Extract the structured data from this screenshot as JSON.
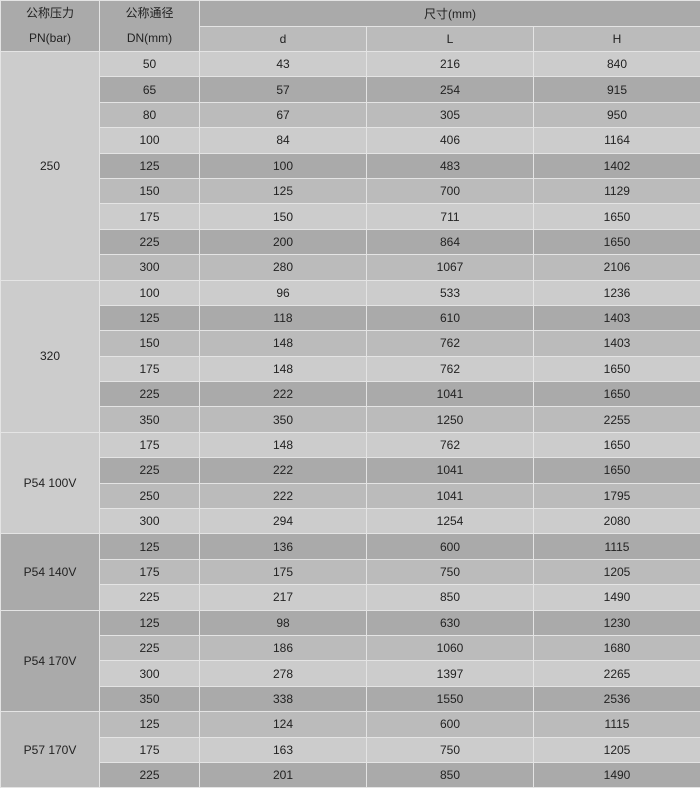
{
  "header": {
    "pressure_label_cn": "公称压力",
    "pressure_label": "PN(bar)",
    "diameter_label_cn": "公称通径",
    "diameter_label": "DN(mm)",
    "dimensions_label": "尺寸(mm)",
    "columns": [
      "d",
      "L",
      "H"
    ]
  },
  "colors": {
    "light": "#cccccc",
    "mid": "#bbbbbb",
    "dark": "#aaaaaa",
    "border": "#e4e4e4"
  },
  "groups": [
    {
      "pn": "250",
      "shade": "light",
      "rows": [
        [
          "50",
          "43",
          "216",
          "840"
        ],
        [
          "65",
          "57",
          "254",
          "915"
        ],
        [
          "80",
          "67",
          "305",
          "950"
        ],
        [
          "100",
          "84",
          "406",
          "1164"
        ],
        [
          "125",
          "100",
          "483",
          "1402"
        ],
        [
          "150",
          "125",
          "700",
          "1129"
        ],
        [
          "175",
          "150",
          "711",
          "1650"
        ],
        [
          "225",
          "200",
          "864",
          "1650"
        ],
        [
          "300",
          "280",
          "1067",
          "2106"
        ]
      ]
    },
    {
      "pn": "320",
      "shade": "light",
      "rows": [
        [
          "100",
          "96",
          "533",
          "1236"
        ],
        [
          "125",
          "118",
          "610",
          "1403"
        ],
        [
          "150",
          "148",
          "762",
          "1403"
        ],
        [
          "175",
          "148",
          "762",
          "1650"
        ],
        [
          "225",
          "222",
          "1041",
          "1650"
        ],
        [
          "350",
          "350",
          "1250",
          "2255"
        ]
      ]
    },
    {
      "pn": "P54 100V",
      "shade": "light",
      "rows": [
        [
          "175",
          "148",
          "762",
          "1650"
        ],
        [
          "225",
          "222",
          "1041",
          "1650"
        ],
        [
          "250",
          "222",
          "1041",
          "1795"
        ],
        [
          "300",
          "294",
          "1254",
          "2080"
        ]
      ]
    },
    {
      "pn": "P54 140V",
      "shade": "dark",
      "rows": [
        [
          "125",
          "136",
          "600",
          "1115"
        ],
        [
          "175",
          "175",
          "750",
          "1205"
        ],
        [
          "225",
          "217",
          "850",
          "1490"
        ]
      ]
    },
    {
      "pn": "P54 170V",
      "shade": "dark",
      "rows": [
        [
          "125",
          "98",
          "630",
          "1230"
        ],
        [
          "225",
          "186",
          "1060",
          "1680"
        ],
        [
          "300",
          "278",
          "1397",
          "2265"
        ],
        [
          "350",
          "338",
          "1550",
          "2536"
        ]
      ]
    },
    {
      "pn": "P57 170V",
      "shade": "mid",
      "rows": [
        [
          "125",
          "124",
          "600",
          "1115"
        ],
        [
          "175",
          "163",
          "750",
          "1205"
        ],
        [
          "225",
          "201",
          "850",
          "1490"
        ]
      ]
    }
  ]
}
